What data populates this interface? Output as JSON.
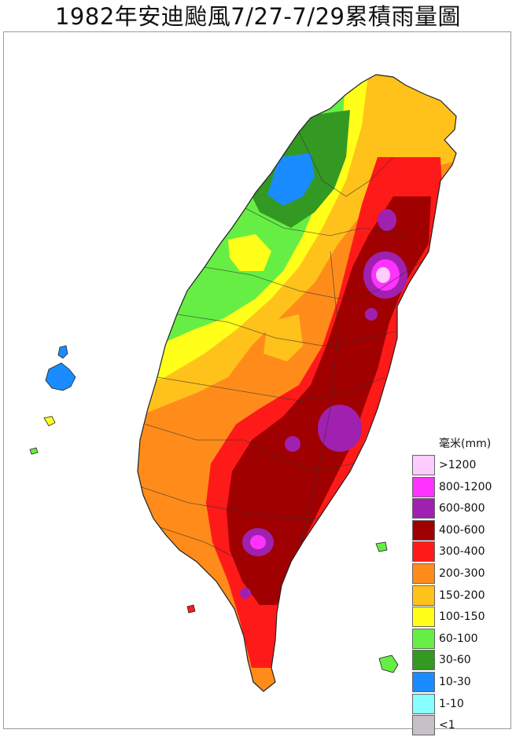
{
  "title": "1982年安迪颱風7/27-7/29累積雨量圖",
  "legend": {
    "unit_label": "毫米(mm)",
    "items": [
      {
        "label": ">1200",
        "color": "#ffccff"
      },
      {
        "label": "800-1200",
        "color": "#ff33ff"
      },
      {
        "label": "600-800",
        "color": "#a020b0"
      },
      {
        "label": "400-600",
        "color": "#a00000"
      },
      {
        "label": "300-400",
        "color": "#ff1a1a"
      },
      {
        "label": "200-300",
        "color": "#ff8c1a"
      },
      {
        "label": "150-200",
        "color": "#ffc21a"
      },
      {
        "label": "100-150",
        "color": "#ffff1a"
      },
      {
        "label": "60-100",
        "color": "#66ee44"
      },
      {
        "label": "30-60",
        "color": "#339922"
      },
      {
        "label": "10-30",
        "color": "#1a8cff"
      },
      {
        "label": "1-10",
        "color": "#88ffff"
      },
      {
        "label": "<1",
        "color": "#c8c0c8"
      }
    ]
  }
}
